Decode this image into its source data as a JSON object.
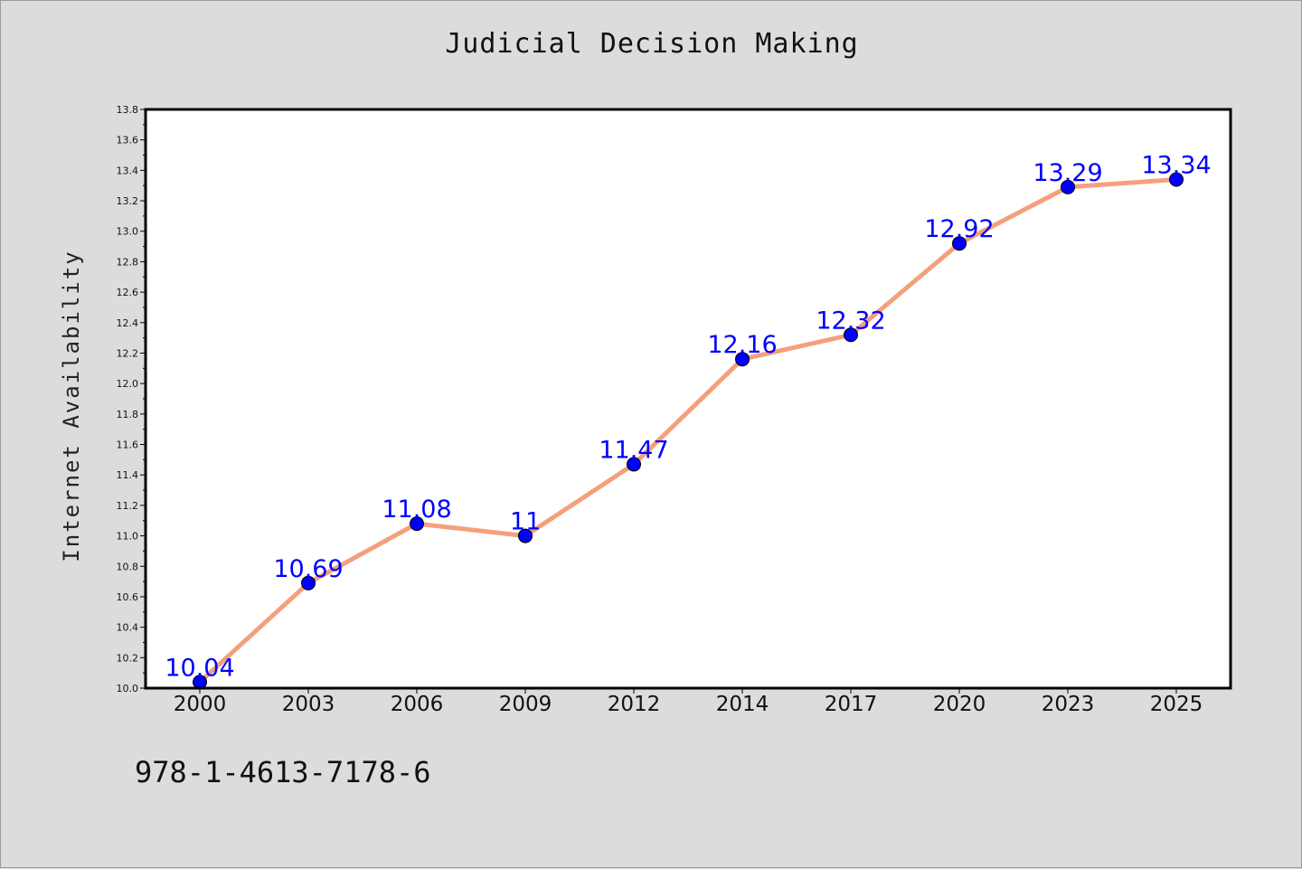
{
  "chart_data": {
    "type": "line",
    "title": "Judicial Decision Making",
    "xlabel": "",
    "ylabel": "Internet Availability",
    "categories": [
      "2000",
      "2003",
      "2006",
      "2009",
      "2012",
      "2014",
      "2017",
      "2020",
      "2023",
      "2025"
    ],
    "series": [
      {
        "values": [
          10.04,
          10.69,
          11.08,
          11.0,
          11.47,
          12.16,
          12.32,
          12.92,
          13.29,
          13.34
        ],
        "data_labels": [
          "10.04",
          "10.69",
          "11.08",
          "11",
          "11.47",
          "12.16",
          "12.32",
          "12.92",
          "13.29",
          "13.34"
        ],
        "line_color": "#f4a07c",
        "marker_color": "#0000ff"
      }
    ],
    "ylim": [
      10.0,
      13.8
    ],
    "yticks": [
      "10.0",
      "10.2",
      "10.4",
      "10.6",
      "10.8",
      "11.0",
      "11.2",
      "11.4",
      "11.6",
      "11.8",
      "12.0",
      "12.2",
      "12.4",
      "12.6",
      "12.8",
      "13.0",
      "13.2",
      "13.4",
      "13.6",
      "13.8"
    ],
    "grid": false,
    "legend": "none",
    "label_color": "#0000ff"
  },
  "footer": {
    "isbn": "978-1-4613-7178-6"
  },
  "colors": {
    "background": "#dcdcdc",
    "plot_background": "#ffffff"
  }
}
